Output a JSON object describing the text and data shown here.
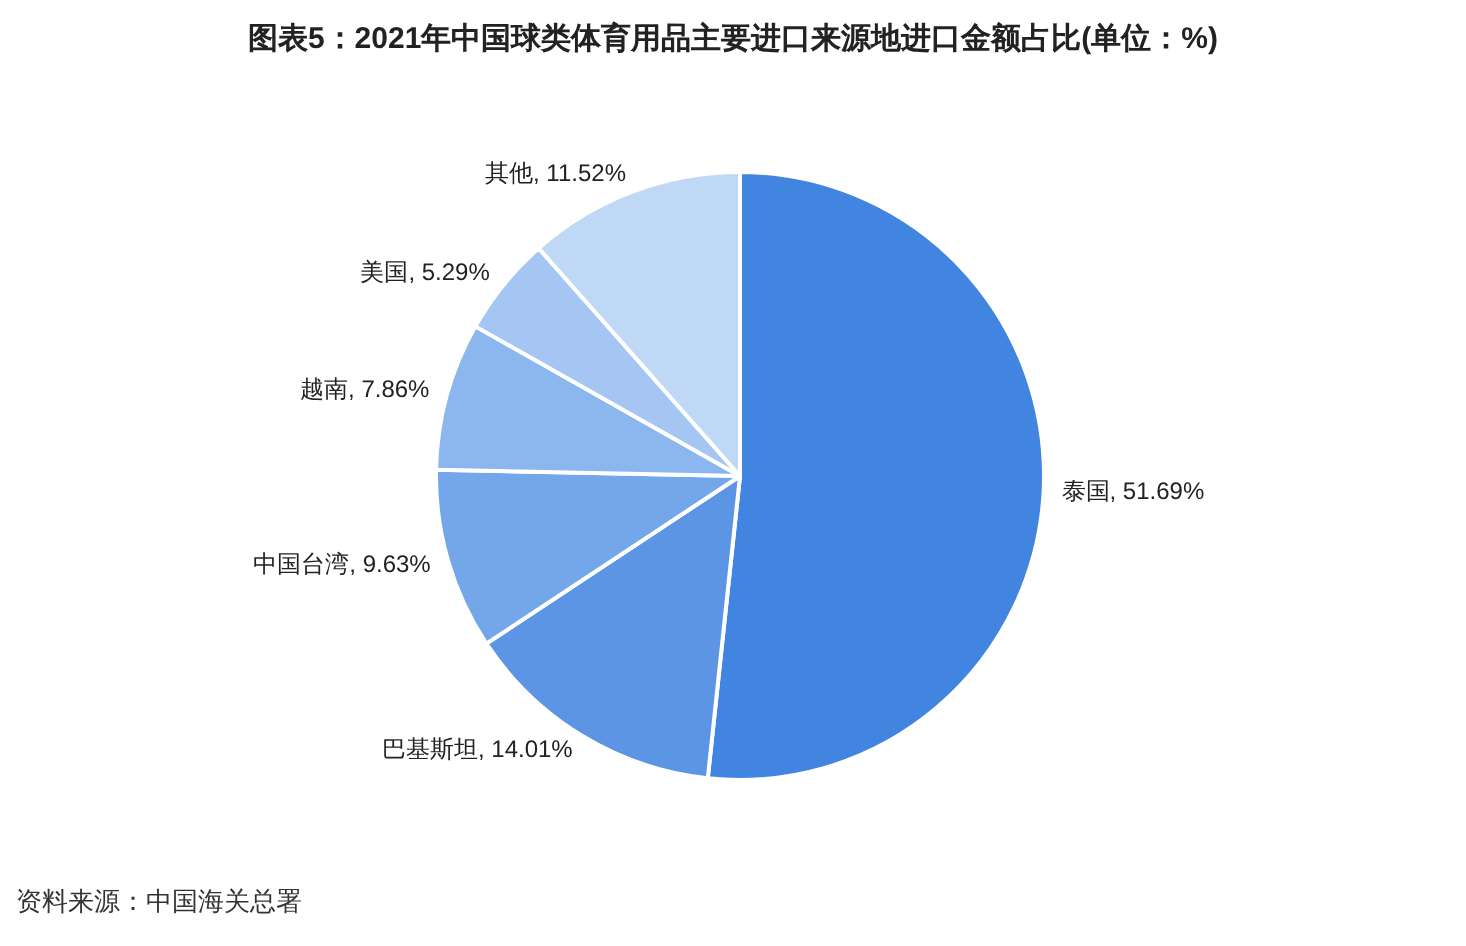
{
  "chart_data": {
    "type": "pie",
    "title": "图表5：2021年中国球类体育用品主要进口来源地进口金额占比(单位：%)",
    "categories": [
      "泰国",
      "巴基斯坦",
      "中国台湾",
      "越南",
      "美国",
      "其他"
    ],
    "values": [
      51.69,
      14.01,
      9.63,
      7.86,
      5.29,
      11.52
    ],
    "colors": [
      "#4285e0",
      "#5b95e4",
      "#74a6ea",
      "#8cb6ee",
      "#a5c6f2",
      "#bfd8f6"
    ],
    "value_labels": [
      "51.69%",
      "14.01%",
      "9.63%",
      "7.86%",
      "5.29%",
      "11.52%"
    ],
    "annotations": [
      "资料来源：中国海关总署"
    ]
  }
}
